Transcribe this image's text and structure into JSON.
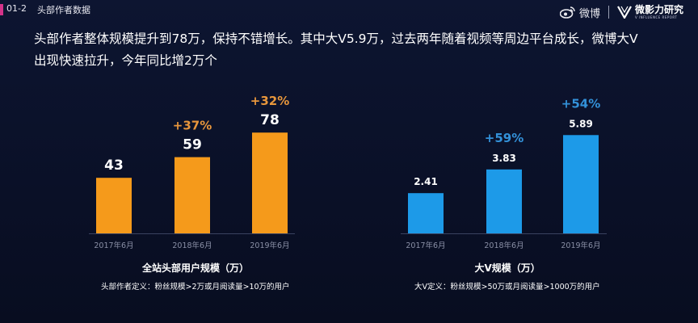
{
  "header": {
    "section_number": "01-2",
    "section_title": "头部作者数据",
    "brand_weibo": "微博",
    "brand_v": "微影力研究",
    "brand_v_sub": "V INFLUENCE REPORT"
  },
  "headline": "头部作者整体规模提升到78万，保持不错增长。其中大V5.9万，过去两年随着视频等周边平台成长，微博大V出现快速拉升，今年同比增2万个",
  "colors": {
    "bar_orange": "#f59a1b",
    "growth_orange": "#e7963c",
    "bar_blue": "#1d9ae8",
    "growth_blue": "#3391d9"
  },
  "chart_data": [
    {
      "type": "bar",
      "categories": [
        "2017年6月",
        "2018年6月",
        "2019年6月"
      ],
      "values": [
        43,
        59,
        78
      ],
      "value_labels": [
        "43",
        "59",
        "78"
      ],
      "growth_labels": [
        "",
        "+37%",
        "+32%"
      ],
      "title": "全站头部用户规模（万）",
      "note": "头部作者定义：粉丝规模>2万或月阅读量>10万的用户",
      "ylim": [
        0,
        80
      ]
    },
    {
      "type": "bar",
      "categories": [
        "2017年6月",
        "2018年6月",
        "2019年6月"
      ],
      "values": [
        2.41,
        3.83,
        5.89
      ],
      "value_labels": [
        "2.41",
        "3.83",
        "5.89"
      ],
      "growth_labels": [
        "",
        "+59%",
        "+54%"
      ],
      "title": "大V规模（万）",
      "note": "大V定义：粉丝规模>50万或月阅读量>1000万的用户",
      "ylim": [
        0,
        6
      ]
    }
  ]
}
